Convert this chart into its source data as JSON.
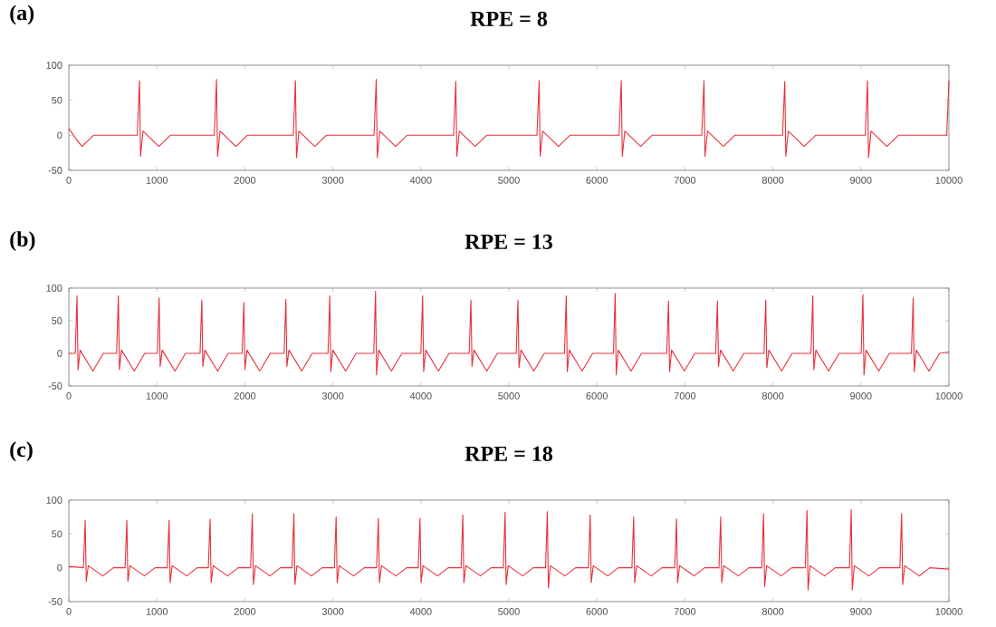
{
  "chart_data": [
    {
      "type": "line",
      "title": "RPE = 8",
      "annotations": [
        "(a)"
      ],
      "color": "#e8303a",
      "xlim": [
        0,
        10000
      ],
      "ylim": [
        -50,
        100
      ],
      "xticks": [
        0,
        1000,
        2000,
        3000,
        4000,
        5000,
        6000,
        7000,
        8000,
        9000,
        10000
      ],
      "yticks": [
        -50,
        0,
        50,
        100
      ],
      "x": [
        0,
        80,
        150,
        280,
        778,
        803,
        815,
        843,
        1023,
        1153,
        1653,
        1678,
        1690,
        1718,
        1898,
        2028,
        2550,
        2575,
        2587,
        2615,
        2795,
        2925,
        3468,
        3493,
        3505,
        3533,
        3713,
        3843,
        4372,
        4397,
        4409,
        4437,
        4617,
        4747,
        5319,
        5344,
        5356,
        5384,
        5564,
        5694,
        6252,
        6277,
        6289,
        6317,
        6497,
        6627,
        7192,
        7217,
        7229,
        7257,
        7437,
        7567,
        8110,
        8135,
        8147,
        8175,
        8355,
        8485,
        9050,
        9075,
        9087,
        9115,
        9295,
        9425,
        9975,
        10000
      ],
      "values": [
        10,
        -5,
        -16,
        0,
        0,
        78,
        -30,
        6,
        -16,
        0,
        0,
        80,
        -30,
        6,
        -16,
        0,
        0,
        78,
        -32,
        6,
        -16,
        0,
        0,
        80,
        -32,
        6,
        -16,
        0,
        0,
        77,
        -30,
        6,
        -16,
        0,
        0,
        78,
        -30,
        6,
        -16,
        0,
        0,
        78,
        -30,
        6,
        -16,
        0,
        0,
        78,
        -30,
        6,
        -16,
        0,
        0,
        77,
        -30,
        6,
        -16,
        0,
        0,
        78,
        -32,
        6,
        -16,
        0,
        0,
        78
      ]
    },
    {
      "type": "line",
      "title": "RPE = 13",
      "annotations": [
        "(b)"
      ],
      "color": "#e8303a",
      "xlim": [
        0,
        10000
      ],
      "ylim": [
        -50,
        100
      ],
      "xticks": [
        0,
        1000,
        2000,
        3000,
        4000,
        5000,
        6000,
        7000,
        8000,
        9000,
        10000
      ],
      "yticks": [
        -50,
        0,
        50,
        100
      ],
      "x": [
        0,
        73,
        93,
        105,
        128,
        273,
        393,
        543,
        563,
        575,
        598,
        743,
        863,
        1006,
        1026,
        1038,
        1061,
        1206,
        1326,
        1491,
        1511,
        1523,
        1546,
        1691,
        1811,
        1969,
        1989,
        2001,
        2024,
        2169,
        2289,
        2446,
        2466,
        2478,
        2501,
        2646,
        2766,
        2945,
        2965,
        2977,
        3000,
        3145,
        3265,
        3465,
        3485,
        3497,
        3520,
        3665,
        3785,
        4000,
        4020,
        4032,
        4055,
        4200,
        4320,
        4549,
        4569,
        4581,
        4604,
        4749,
        4869,
        5083,
        5103,
        5115,
        5138,
        5283,
        5403,
        5632,
        5652,
        5664,
        5687,
        5832,
        5952,
        6188,
        6208,
        6220,
        6243,
        6388,
        6508,
        6794,
        6814,
        6826,
        6849,
        6994,
        7114,
        7350,
        7370,
        7382,
        7405,
        7550,
        7670,
        7899,
        7919,
        7931,
        7954,
        8099,
        8219,
        8433,
        8453,
        8465,
        8488,
        8633,
        8753,
        9003,
        9023,
        9035,
        9058,
        9203,
        9323,
        9574,
        9594,
        9606,
        9629,
        9774,
        9894,
        10000
      ],
      "values": [
        0,
        0,
        88,
        -25,
        5,
        -27,
        0,
        0,
        88,
        -25,
        5,
        -27,
        0,
        0,
        85,
        -20,
        5,
        -27,
        0,
        0,
        82,
        -20,
        5,
        -27,
        0,
        0,
        78,
        -25,
        5,
        -27,
        0,
        0,
        83,
        -20,
        5,
        -27,
        0,
        0,
        88,
        -28,
        5,
        -27,
        0,
        0,
        95,
        -33,
        5,
        -27,
        0,
        0,
        88,
        -28,
        5,
        -27,
        0,
        0,
        82,
        -20,
        5,
        -27,
        0,
        0,
        82,
        -22,
        5,
        -27,
        0,
        0,
        88,
        -28,
        5,
        -27,
        0,
        0,
        92,
        -33,
        5,
        -27,
        0,
        0,
        80,
        -28,
        5,
        -27,
        0,
        0,
        80,
        -20,
        5,
        -27,
        0,
        0,
        82,
        -22,
        5,
        -27,
        0,
        0,
        88,
        -25,
        5,
        -27,
        0,
        0,
        90,
        -33,
        5,
        -27,
        0,
        0,
        85,
        -28,
        5,
        -27,
        0,
        2
      ]
    },
    {
      "type": "line",
      "title": "RPE = 18",
      "annotations": [
        "(c)"
      ],
      "color": "#e8303a",
      "xlim": [
        0,
        10000
      ],
      "ylim": [
        -50,
        100
      ],
      "xticks": [
        0,
        1000,
        2000,
        3000,
        4000,
        5000,
        6000,
        7000,
        8000,
        9000,
        10000
      ],
      "yticks": [
        -50,
        0,
        50,
        100
      ],
      "x": [
        0,
        166,
        186,
        198,
        221,
        386,
        506,
        639,
        659,
        671,
        694,
        859,
        979,
        1119,
        1139,
        1151,
        1174,
        1339,
        1459,
        1585,
        1605,
        1617,
        1640,
        1805,
        1925,
        2065,
        2085,
        2097,
        2120,
        2285,
        2405,
        2537,
        2557,
        2569,
        2592,
        2757,
        2877,
        3017,
        3037,
        3049,
        3072,
        3237,
        3357,
        3497,
        3517,
        3529,
        3552,
        3717,
        3837,
        3970,
        3990,
        4002,
        4025,
        4190,
        4310,
        4457,
        4477,
        4489,
        4512,
        4677,
        4797,
        4937,
        4957,
        4969,
        4992,
        5157,
        5277,
        5417,
        5437,
        5449,
        5472,
        5637,
        5757,
        5904,
        5924,
        5936,
        5959,
        6124,
        6244,
        6398,
        6418,
        6430,
        6453,
        6618,
        6738,
        6885,
        6905,
        6917,
        6940,
        7105,
        7225,
        7387,
        7407,
        7419,
        7442,
        7607,
        7727,
        7874,
        7894,
        7906,
        7929,
        8094,
        8214,
        8368,
        8388,
        8400,
        8423,
        8588,
        8708,
        8870,
        8890,
        8902,
        8925,
        9090,
        9210,
        9443,
        9463,
        9475,
        9498,
        9663,
        9783,
        10000
      ],
      "values": [
        2,
        0,
        70,
        -20,
        3,
        -12,
        0,
        0,
        70,
        -20,
        3,
        -12,
        0,
        0,
        70,
        -22,
        3,
        -12,
        0,
        0,
        72,
        -22,
        3,
        -12,
        0,
        0,
        80,
        -25,
        3,
        -12,
        0,
        0,
        80,
        -25,
        3,
        -12,
        0,
        0,
        75,
        -22,
        3,
        -12,
        0,
        0,
        73,
        -22,
        3,
        -12,
        0,
        0,
        73,
        -22,
        3,
        -12,
        0,
        0,
        78,
        -22,
        3,
        -12,
        0,
        0,
        82,
        -25,
        3,
        -12,
        0,
        0,
        83,
        -30,
        3,
        -12,
        0,
        0,
        78,
        -22,
        3,
        -12,
        0,
        0,
        75,
        -22,
        3,
        -12,
        0,
        0,
        72,
        -22,
        3,
        -12,
        0,
        0,
        75,
        -22,
        3,
        -12,
        0,
        0,
        80,
        -28,
        3,
        -12,
        0,
        0,
        85,
        -33,
        3,
        -12,
        0,
        0,
        86,
        -33,
        3,
        -12,
        0,
        0,
        80,
        -25,
        3,
        -12,
        0,
        -2
      ]
    }
  ]
}
